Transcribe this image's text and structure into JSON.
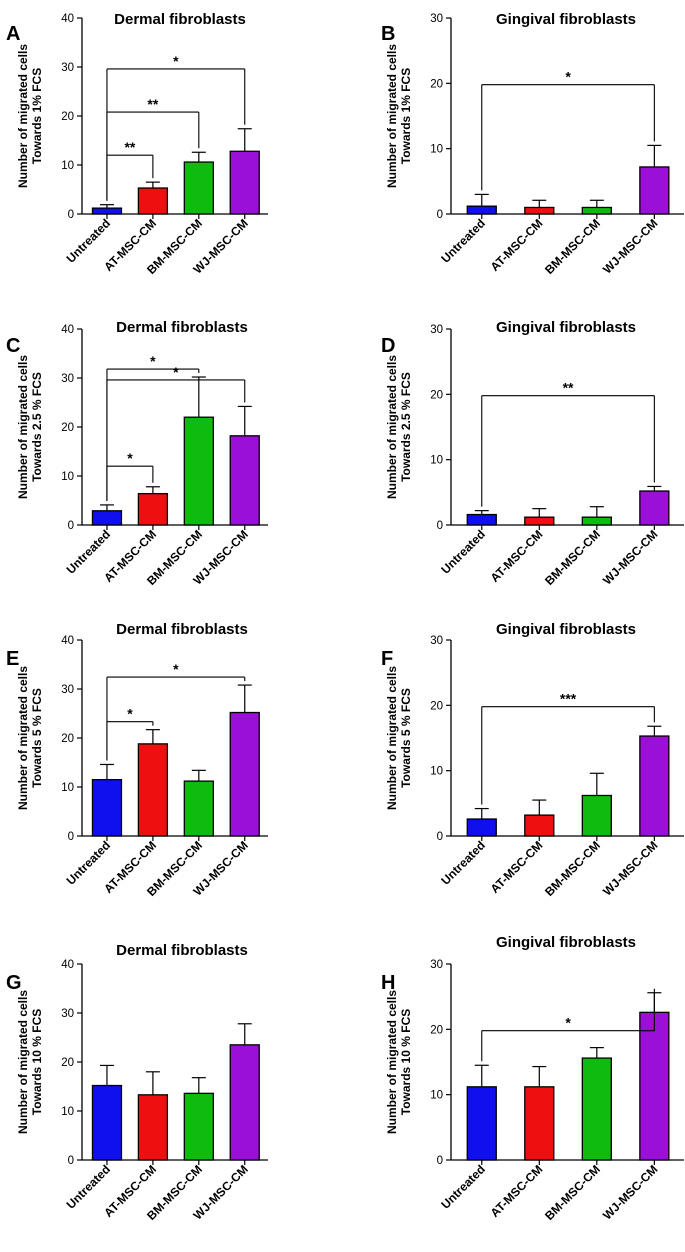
{
  "figure": {
    "colors": {
      "Untreated": "#1010ee",
      "AT-MSC-CM": "#ee1010",
      "BM-MSC-CM": "#10bb10",
      "WJ-MSC-CM": "#9a10d8",
      "axis": "#000000"
    }
  },
  "chart_data": [
    {
      "panel": "A",
      "type": "bar",
      "title": "Dermal fibroblasts",
      "ylabel": [
        "Number of migrated cells",
        "Towards 1% FCS"
      ],
      "categories": [
        "Untreated",
        "AT-MSC-CM",
        "BM-MSC-CM",
        "WJ-MSC-CM"
      ],
      "values": [
        1.2,
        5.3,
        10.6,
        12.8
      ],
      "errors": [
        0.7,
        1.2,
        2.0,
        4.6
      ],
      "ylim": [
        0,
        40
      ],
      "yticks": [
        0,
        10,
        20,
        30,
        40
      ],
      "significance": [
        {
          "from": 0,
          "to": 1,
          "label": "**"
        },
        {
          "from": 0,
          "to": 2,
          "label": "**"
        },
        {
          "from": 0,
          "to": 3,
          "label": "*"
        }
      ]
    },
    {
      "panel": "B",
      "type": "bar",
      "title": "Gingival fibroblasts",
      "ylabel": [
        "Number of migrated cells",
        "Towards 1% FCS"
      ],
      "categories": [
        "Untreated",
        "AT-MSC-CM",
        "BM-MSC-CM",
        "WJ-MSC-CM"
      ],
      "values": [
        1.2,
        1.0,
        1.0,
        7.2
      ],
      "errors": [
        1.8,
        1.1,
        1.1,
        3.3
      ],
      "ylim": [
        0,
        30
      ],
      "yticks": [
        0,
        10,
        20,
        30
      ],
      "significance": [
        {
          "from": 0,
          "to": 3,
          "label": "*"
        }
      ]
    },
    {
      "panel": "C",
      "type": "bar",
      "title": "Dermal fibroblasts",
      "ylabel": [
        "Number of migrated cells",
        "Towards 2.5 % FCS"
      ],
      "categories": [
        "Untreated",
        "AT-MSC-CM",
        "BM-MSC-CM",
        "WJ-MSC-CM"
      ],
      "values": [
        2.9,
        6.4,
        22.0,
        18.2
      ],
      "errors": [
        1.2,
        1.4,
        8.2,
        6.0
      ],
      "ylim": [
        0,
        40
      ],
      "yticks": [
        0,
        10,
        20,
        30,
        40
      ],
      "significance": [
        {
          "from": 0,
          "to": 1,
          "label": "*"
        },
        {
          "from": 0,
          "to": 2,
          "label": "*"
        },
        {
          "from": 0,
          "to": 3,
          "label": "*"
        }
      ]
    },
    {
      "panel": "D",
      "type": "bar",
      "title": "Gingival fibroblasts",
      "ylabel": [
        "Number of migrated cells",
        "Towards 2.5 % FCS"
      ],
      "categories": [
        "Untreated",
        "AT-MSC-CM",
        "BM-MSC-CM",
        "WJ-MSC-CM"
      ],
      "values": [
        1.6,
        1.2,
        1.2,
        5.2
      ],
      "errors": [
        0.6,
        1.3,
        1.6,
        0.7
      ],
      "ylim": [
        0,
        30
      ],
      "yticks": [
        0,
        10,
        20,
        30
      ],
      "significance": [
        {
          "from": 0,
          "to": 3,
          "label": "**"
        }
      ]
    },
    {
      "panel": "E",
      "type": "bar",
      "title": "Dermal fibroblasts",
      "ylabel": [
        "Number of migrated cells",
        "Towards 5 % FCS"
      ],
      "categories": [
        "Untreated",
        "AT-MSC-CM",
        "BM-MSC-CM",
        "WJ-MSC-CM"
      ],
      "values": [
        11.5,
        18.8,
        11.2,
        25.2
      ],
      "errors": [
        3.1,
        2.9,
        2.2,
        5.6
      ],
      "ylim": [
        0,
        40
      ],
      "yticks": [
        0,
        10,
        20,
        30,
        40
      ],
      "significance": [
        {
          "from": 0,
          "to": 1,
          "label": "*"
        },
        {
          "from": 0,
          "to": 3,
          "label": "*"
        }
      ]
    },
    {
      "panel": "F",
      "type": "bar",
      "title": "Gingival fibroblasts",
      "ylabel": [
        "Number of migrated cells",
        "Towards 5 % FCS"
      ],
      "categories": [
        "Untreated",
        "AT-MSC-CM",
        "BM-MSC-CM",
        "WJ-MSC-CM"
      ],
      "values": [
        2.6,
        3.2,
        6.2,
        15.3
      ],
      "errors": [
        1.6,
        2.3,
        3.4,
        1.5
      ],
      "ylim": [
        0,
        30
      ],
      "yticks": [
        0,
        10,
        20,
        30
      ],
      "significance": [
        {
          "from": 0,
          "to": 3,
          "label": "***"
        }
      ]
    },
    {
      "panel": "G",
      "type": "bar",
      "title": "Dermal fibroblasts",
      "ylabel": [
        "Number of migrated cells",
        "Towards 10 % FCS"
      ],
      "categories": [
        "Untreated",
        "AT-MSC-CM",
        "BM-MSC-CM",
        "WJ-MSC-CM"
      ],
      "values": [
        15.2,
        13.3,
        13.6,
        23.5
      ],
      "errors": [
        4.1,
        4.7,
        3.2,
        4.3
      ],
      "ylim": [
        0,
        40
      ],
      "yticks": [
        0,
        10,
        20,
        30,
        40
      ],
      "significance": []
    },
    {
      "panel": "H",
      "type": "bar",
      "title": "Gingival fibroblasts",
      "ylabel": [
        "Number of migrated cells",
        "Towards 10 % FCS"
      ],
      "categories": [
        "Untreated",
        "AT-MSC-CM",
        "BM-MSC-CM",
        "WJ-MSC-CM"
      ],
      "values": [
        11.2,
        11.2,
        15.6,
        22.6
      ],
      "errors": [
        3.3,
        3.1,
        1.6,
        3.0
      ],
      "ylim": [
        0,
        30
      ],
      "yticks": [
        0,
        10,
        20,
        30
      ],
      "significance": [
        {
          "from": 0,
          "to": 3,
          "label": "*"
        }
      ]
    }
  ]
}
